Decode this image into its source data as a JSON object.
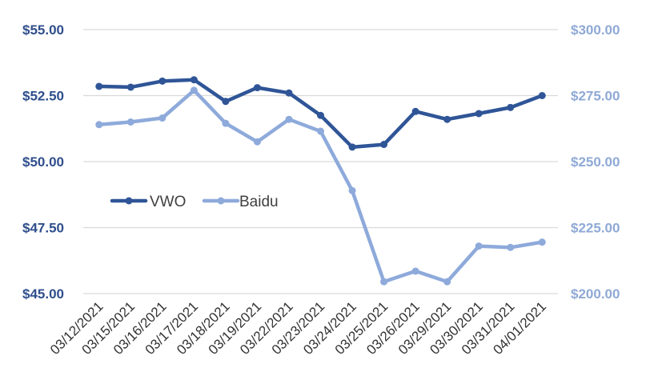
{
  "chart_data": {
    "type": "line",
    "title": "",
    "xlabel": "",
    "ylabel": "",
    "categories": [
      "03/12/2021",
      "03/15/2021",
      "03/16/2021",
      "03/17/2021",
      "03/18/2021",
      "03/19/2021",
      "03/22/2021",
      "03/23/2021",
      "03/24/2021",
      "03/25/2021",
      "03/26/2021",
      "03/29/2021",
      "03/30/2021",
      "03/31/2021",
      "04/01/2021"
    ],
    "series": [
      {
        "name": "VWO",
        "axis": "left",
        "color": "#2f5597",
        "values": [
          52.85,
          52.82,
          53.05,
          53.1,
          52.28,
          52.8,
          52.6,
          51.75,
          50.55,
          50.65,
          51.9,
          51.6,
          51.82,
          52.05,
          52.5
        ]
      },
      {
        "name": "Baidu",
        "axis": "right",
        "color": "#8eaadb",
        "values": [
          264,
          265,
          266.5,
          277,
          264.5,
          257.5,
          266,
          261.5,
          239,
          204.5,
          208.5,
          204.5,
          218,
          217.5,
          219.5
        ]
      }
    ],
    "y_left": {
      "ylim": [
        45,
        55
      ],
      "ticks": [
        55,
        52.5,
        50,
        47.5,
        45
      ],
      "tick_labels": [
        "$55.00",
        "$52.50",
        "$50.00",
        "$47.50",
        "$45.00"
      ]
    },
    "y_right": {
      "ylim": [
        200,
        300
      ],
      "ticks": [
        300,
        275,
        250,
        225,
        200
      ],
      "tick_labels": [
        "$300.00",
        "$275.00",
        "$250.00",
        "$225.00",
        "$200.00"
      ]
    },
    "grid": true,
    "legend": {
      "position": "left-middle",
      "entries": [
        "VWO",
        "Baidu"
      ]
    }
  }
}
